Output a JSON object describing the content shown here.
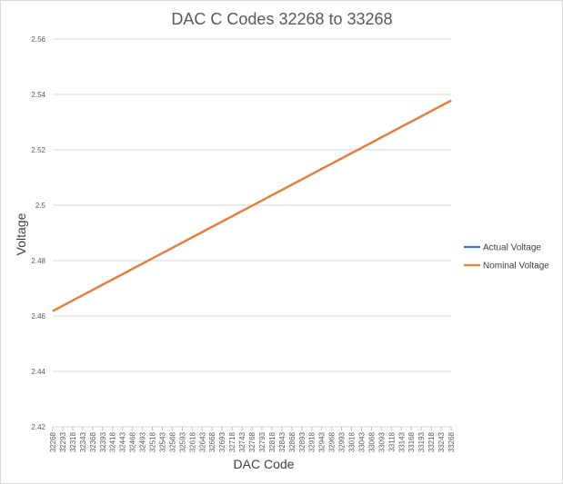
{
  "chart_data": {
    "type": "line",
    "title": "DAC C Codes 32268 to 33268",
    "xlabel": "DAC Code",
    "ylabel": "Voltage",
    "ylim": [
      2.42,
      2.56
    ],
    "yticks": [
      "2.42",
      "2.44",
      "2.46",
      "2.48",
      "2.5",
      "2.52",
      "2.54",
      "2.56"
    ],
    "categories": [
      32268,
      32293,
      32318,
      32343,
      32368,
      32393,
      32418,
      32443,
      32468,
      32493,
      32518,
      32543,
      32568,
      32593,
      32618,
      32643,
      32668,
      32693,
      32718,
      32743,
      32768,
      32793,
      32818,
      32843,
      32868,
      32893,
      32918,
      32943,
      32968,
      32993,
      33018,
      33043,
      33068,
      33093,
      33118,
      33143,
      33168,
      33193,
      33218,
      33243,
      33268
    ],
    "series": [
      {
        "name": "Actual Voltage",
        "color": "#4472c4",
        "values": [
          2.4618,
          2.4637,
          2.4656,
          2.4675,
          2.4694,
          2.4713,
          2.4732,
          2.4751,
          2.477,
          2.4789,
          2.4808,
          2.4827,
          2.4846,
          2.4865,
          2.4884,
          2.4903,
          2.4922,
          2.4941,
          2.496,
          2.4979,
          2.4998,
          2.5017,
          2.5036,
          2.5055,
          2.5074,
          2.5093,
          2.5112,
          2.5131,
          2.515,
          2.5169,
          2.5188,
          2.5207,
          2.5226,
          2.5245,
          2.5264,
          2.5283,
          2.5302,
          2.5321,
          2.534,
          2.5359,
          2.5378
        ]
      },
      {
        "name": "Nominal Voltage",
        "color": "#ed7d31",
        "values": [
          2.4618,
          2.4637,
          2.4656,
          2.4675,
          2.4694,
          2.4713,
          2.4732,
          2.4751,
          2.477,
          2.4789,
          2.4808,
          2.4827,
          2.4846,
          2.4865,
          2.4884,
          2.4903,
          2.4922,
          2.4941,
          2.496,
          2.4979,
          2.4998,
          2.5017,
          2.5036,
          2.5055,
          2.5074,
          2.5093,
          2.5112,
          2.5131,
          2.515,
          2.5169,
          2.5188,
          2.5207,
          2.5226,
          2.5245,
          2.5264,
          2.5283,
          2.5302,
          2.5321,
          2.534,
          2.5359,
          2.5378
        ]
      }
    ],
    "grid": true,
    "legend": "right"
  }
}
